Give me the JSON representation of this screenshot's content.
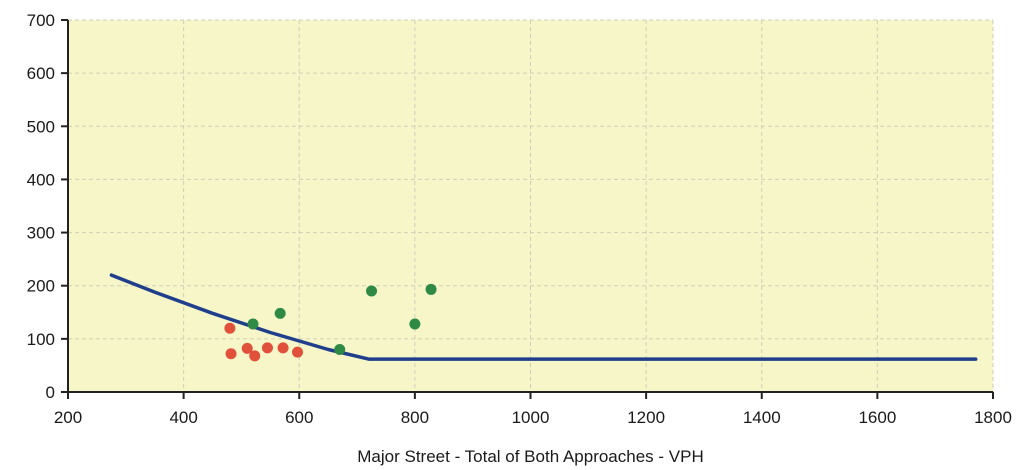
{
  "chart_data": {
    "type": "scatter",
    "title": "",
    "xlabel": "Major Street - Total of Both Approaches - VPH",
    "ylabel": "",
    "xlim": [
      200,
      1800
    ],
    "ylim": [
      0,
      700
    ],
    "x_ticks": [
      200,
      400,
      600,
      800,
      1000,
      1200,
      1400,
      1600,
      1800
    ],
    "y_ticks": [
      0,
      100,
      200,
      300,
      400,
      500,
      600,
      700
    ],
    "grid": true,
    "colors": {
      "plot_background": "#f6f6c9",
      "threshold_line": "#1f3f8c",
      "red_points": "#e0503a",
      "green_points": "#2f8a45"
    },
    "series": [
      {
        "kind": "line",
        "points": [
          [
            275,
            220
          ],
          [
            350,
            188
          ],
          [
            450,
            148
          ],
          [
            550,
            112
          ],
          [
            650,
            80
          ],
          [
            720,
            62
          ],
          [
            1770,
            62
          ]
        ]
      },
      {
        "kind": "scatter",
        "color_key": "red_points",
        "points": [
          [
            480,
            120
          ],
          [
            482,
            72
          ],
          [
            510,
            82
          ],
          [
            523,
            68
          ],
          [
            545,
            83
          ],
          [
            572,
            83
          ],
          [
            597,
            75
          ]
        ]
      },
      {
        "kind": "scatter",
        "color_key": "green_points",
        "points": [
          [
            520,
            128
          ],
          [
            567,
            148
          ],
          [
            670,
            80
          ],
          [
            725,
            190
          ],
          [
            800,
            128
          ],
          [
            828,
            193
          ]
        ]
      }
    ]
  }
}
